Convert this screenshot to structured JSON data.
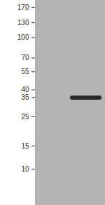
{
  "chart_data": {
    "type": "western_blot",
    "categories": [
      null,
      null
    ],
    "values": [
      null,
      35
    ],
    "color": "#2a2a2a",
    "log": "y",
    "ylim": [
      5.3,
      192
    ],
    "yticks": [
      170,
      130,
      100,
      70,
      55,
      40,
      35,
      25,
      15,
      10
    ],
    "tick_labels": "y"
  }
}
